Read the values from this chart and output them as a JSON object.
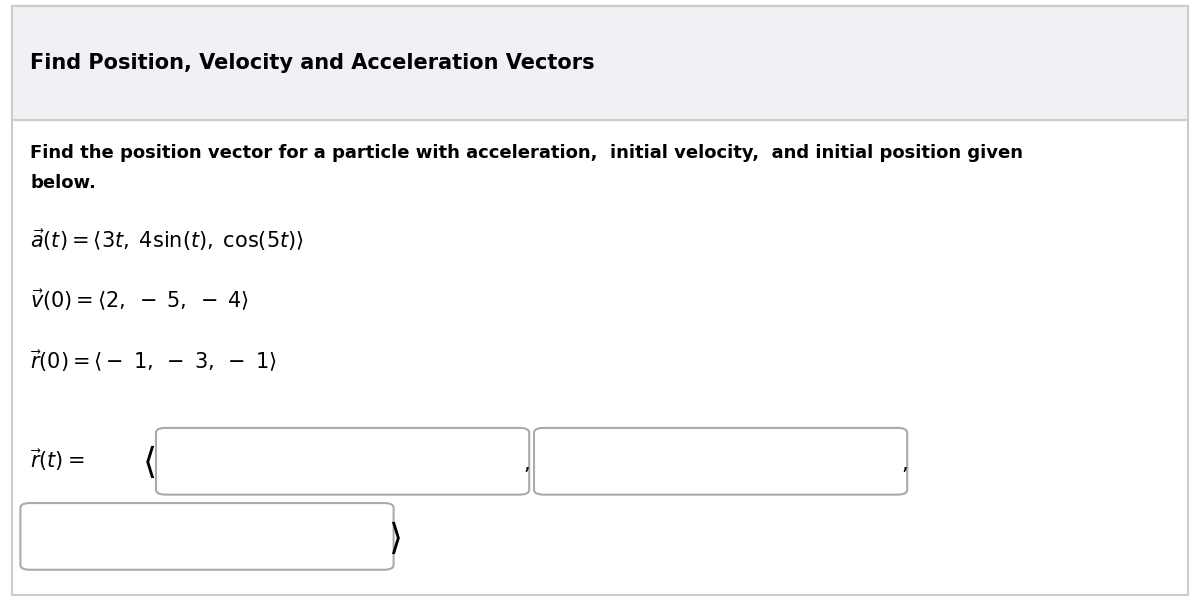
{
  "title": "Find Position, Velocity and Acceleration Vectors",
  "bg_header": "#f0f0f5",
  "bg_body": "#ffffff",
  "border_color": "#cccccc",
  "text_color": "#000000",
  "box_fill": "#ffffff",
  "box_edge": "#aaaaaa"
}
